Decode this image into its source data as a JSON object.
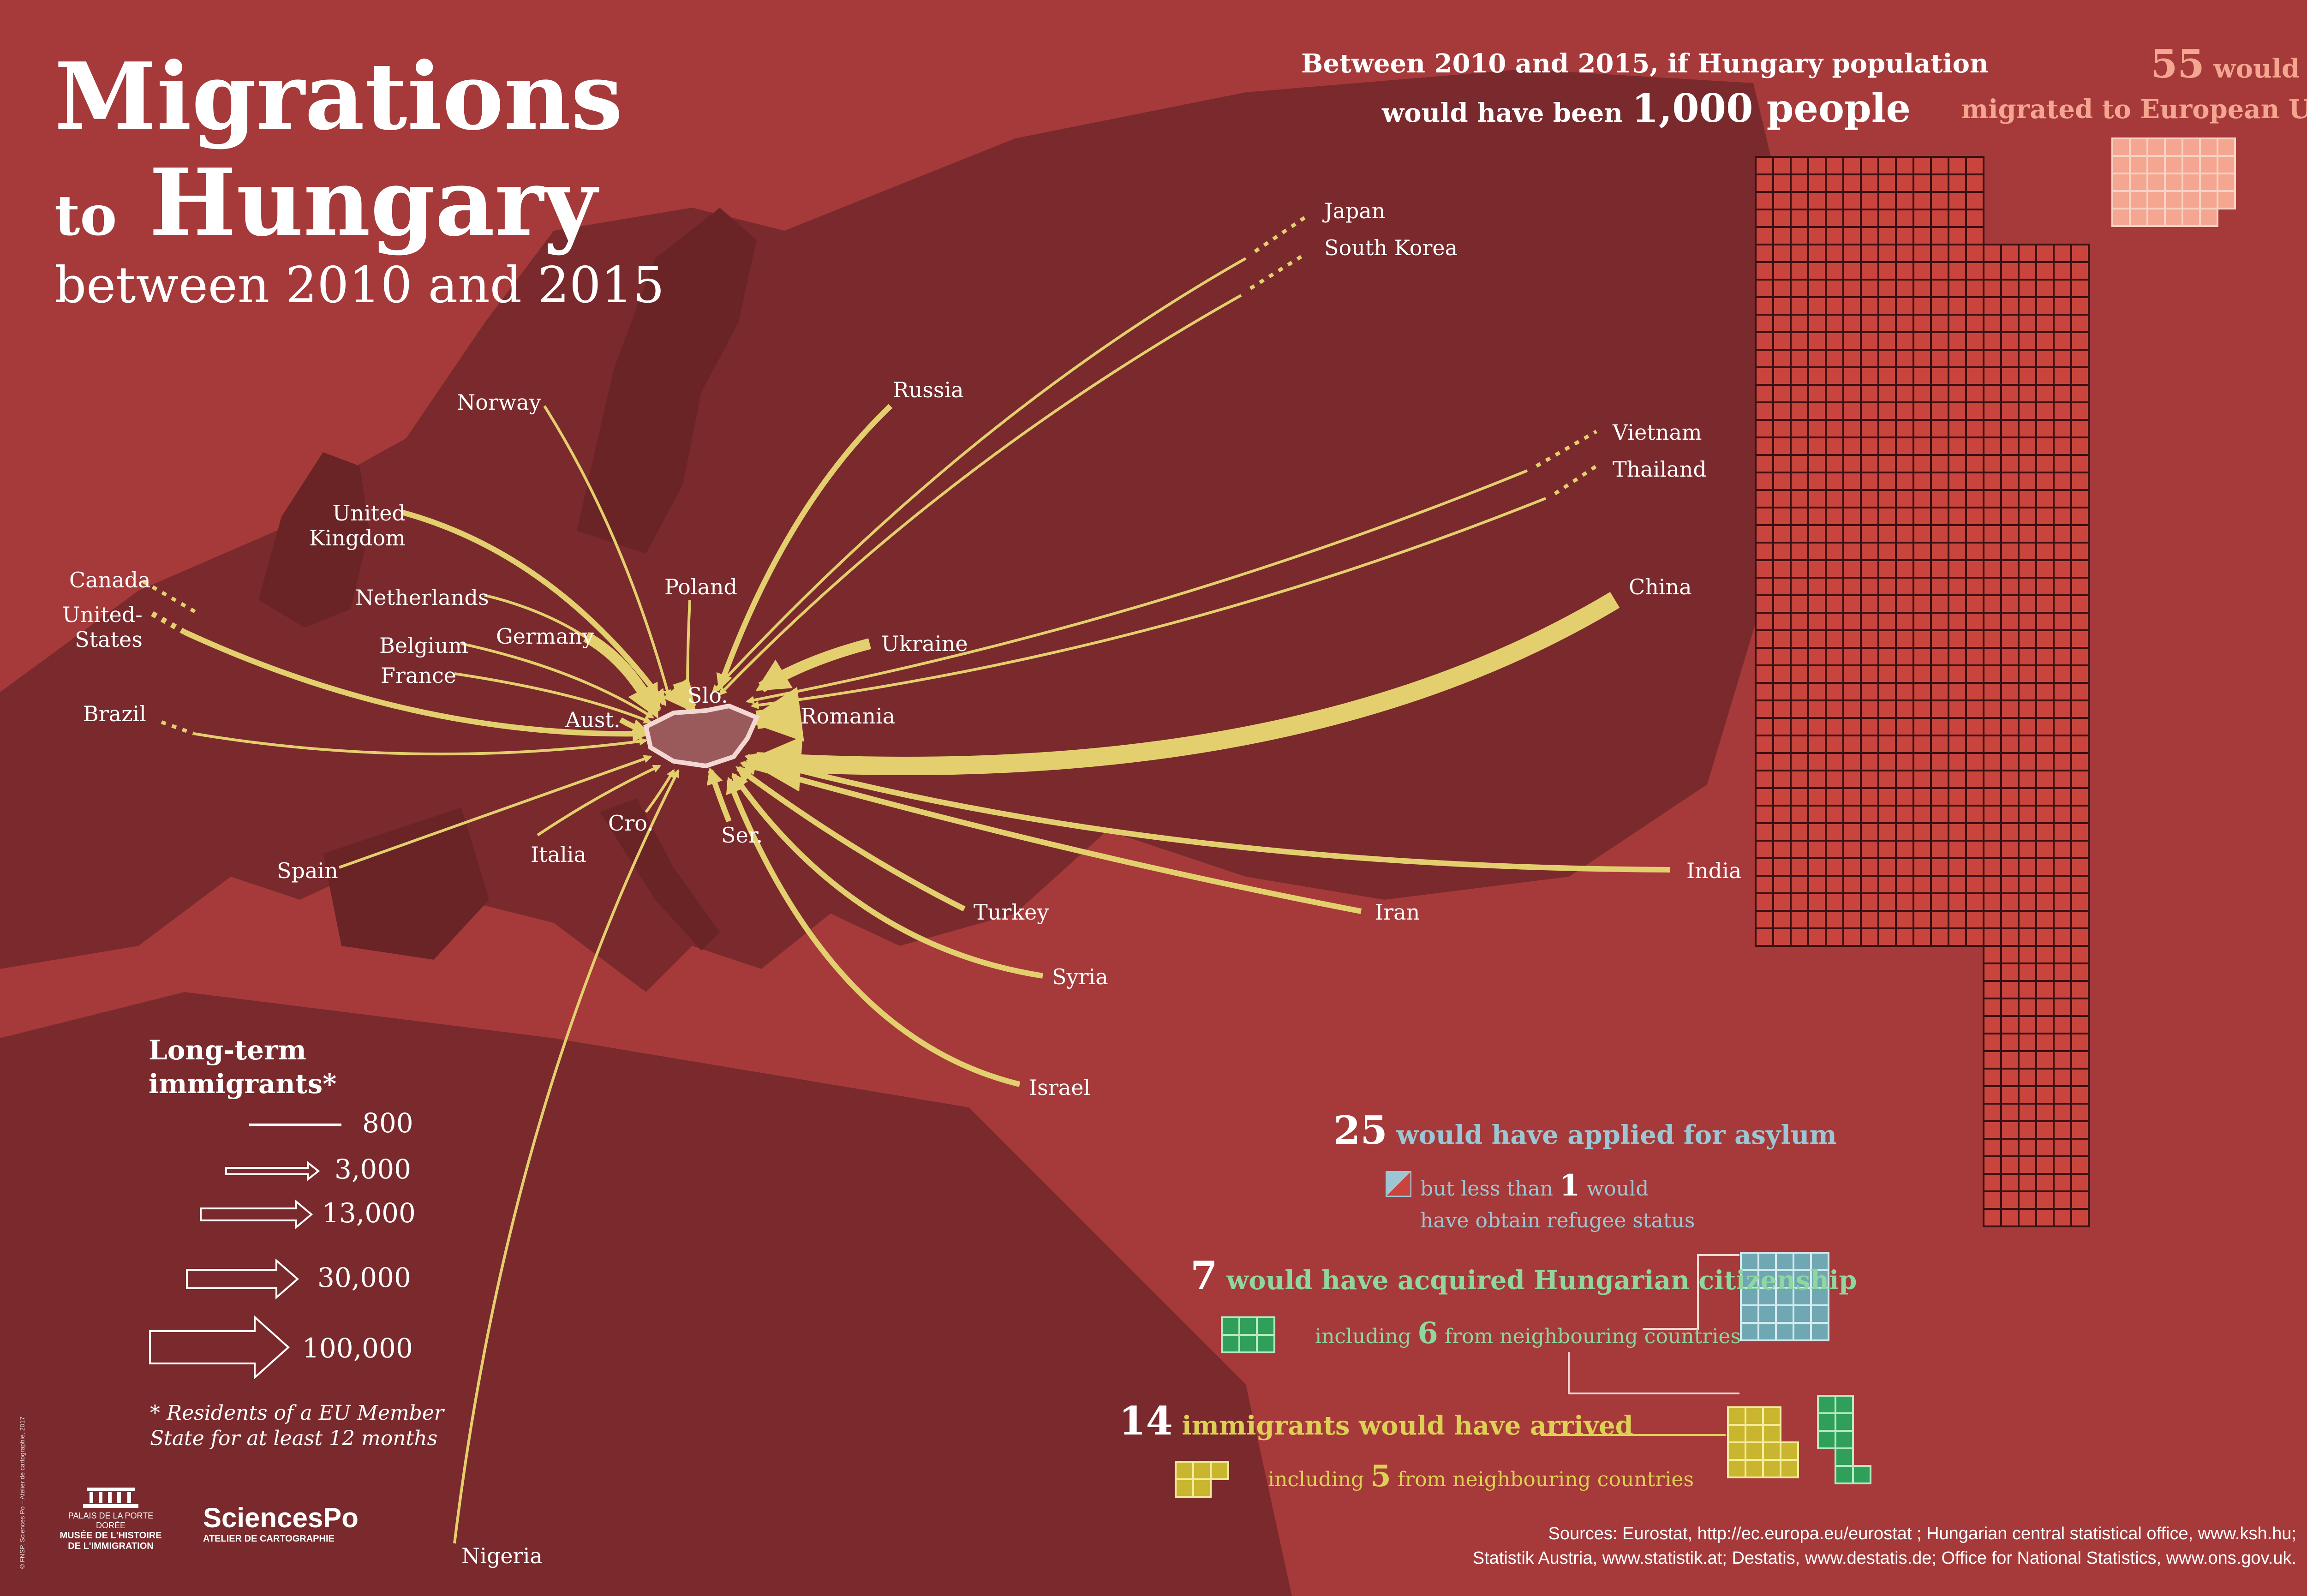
{
  "title": {
    "line1": "Migrations",
    "line2_to": "to",
    "line2_main": "Hungary",
    "subtitle": "between 2010 and 2015"
  },
  "flows": [
    {
      "label": "Japan",
      "value": 800
    },
    {
      "label": "South Korea",
      "value": 800
    },
    {
      "label": "Russia",
      "value": 3000
    },
    {
      "label": "Vietnam",
      "value": 800
    },
    {
      "label": "Thailand",
      "value": 800
    },
    {
      "label": "China",
      "value": 30000
    },
    {
      "label": "Ukraine",
      "value": 13000
    },
    {
      "label": "Romania",
      "value": 30000
    },
    {
      "label": "India",
      "value": 3000
    },
    {
      "label": "Iran",
      "value": 3000
    },
    {
      "label": "Turkey",
      "value": 3000
    },
    {
      "label": "Syria",
      "value": 3000
    },
    {
      "label": "Israel",
      "value": 3000
    },
    {
      "label": "Norway",
      "value": 800
    },
    {
      "label": "United Kingdom",
      "value": 3000
    },
    {
      "label": "Netherlands",
      "value": 800
    },
    {
      "label": "Germany",
      "value": 13000
    },
    {
      "label": "Belgium",
      "value": 800
    },
    {
      "label": "France",
      "value": 800
    },
    {
      "label": "Canada",
      "value": 800
    },
    {
      "label": "United-States",
      "value": 3000
    },
    {
      "label": "Brazil",
      "value": 800
    },
    {
      "label": "Spain",
      "value": 800
    },
    {
      "label": "Italia",
      "value": 800
    },
    {
      "label": "Nigeria",
      "value": 800
    },
    {
      "label": "Slo.",
      "value": 13000
    },
    {
      "label": "Aust.",
      "value": 3000
    },
    {
      "label": "Cro.",
      "value": 800
    },
    {
      "label": "Ser.",
      "value": 3000
    },
    {
      "label": "Poland",
      "value": 800
    }
  ],
  "labels": {
    "japan": "Japan",
    "south_korea": "South Korea",
    "russia": "Russia",
    "vietnam": "Vietnam",
    "thailand": "Thailand",
    "china": "China",
    "ukraine": "Ukraine",
    "romania": "Romania",
    "india": "India",
    "iran": "Iran",
    "turkey": "Turkey",
    "syria": "Syria",
    "israel": "Israel",
    "norway": "Norway",
    "uk_1": "United",
    "uk_2": "Kingdom",
    "netherlands": "Netherlands",
    "germany": "Germany",
    "belgium": "Belgium",
    "france": "France",
    "canada": "Canada",
    "us_1": "United-",
    "us_2": "States",
    "brazil": "Brazil",
    "spain": "Spain",
    "italia": "Italia",
    "nigeria": "Nigeria",
    "slo": "Slo.",
    "aust": "Aust.",
    "cro": "Cro.",
    "ser": "Ser.",
    "poland": "Poland"
  },
  "legend": {
    "title_1": "Long-term",
    "title_2": "immigrants*",
    "values": [
      "800",
      "3,000",
      "13,000",
      "30,000",
      "100,000"
    ],
    "footnote_1": "* Residents of a EU Member",
    "footnote_2": "State for at least 12 months"
  },
  "stats": {
    "header_1": "Between 2010 and 2015, if Hungary population",
    "header_2a": "would have been",
    "header_2b": "1,000 people",
    "eu_number": "55",
    "eu_text_1": "would have",
    "eu_text_2": "migrated to European Union",
    "asylum_number": "25",
    "asylum_text": "would have applied for asylum",
    "refugee_text_1": "but less than",
    "refugee_number": "1",
    "refugee_text_2": "would",
    "refugee_text_3": "have obtain refugee status",
    "citizenship_number": "7",
    "citizenship_text": "would have acquired Hungarian citizenship",
    "citizenship_incl_1": "including",
    "citizenship_incl_number": "6",
    "citizenship_incl_2": "from neighbouring countries",
    "immigrants_number": "14",
    "immigrants_text": "immigrants would have arrived",
    "immigrants_incl_1": "including",
    "immigrants_incl_number": "5",
    "immigrants_incl_2": "from neighbouring countries"
  },
  "grid": {
    "population": 1000,
    "emigrated_eu": 55,
    "asylum": 25,
    "refugee": 1,
    "citizenship": 7,
    "citizenship_neighbours": 6,
    "immigrants": 14,
    "immigrants_neighbours": 5
  },
  "colors": {
    "background": "#a63a3a",
    "land": "#7a2a2c",
    "flow": "#e3cf6e",
    "grid_main": "#c9443d",
    "grid_eu": "#f4a690",
    "grid_citizenship": "#6fa7b3",
    "grid_green": "#2f9f5a",
    "grid_yellow": "#c9b62e"
  },
  "sources": {
    "line1": "Sources: Eurostat, http://ec.europa.eu/eurostat ; Hungarian central statistical office, www.ksh.hu;",
    "line2": "Statistik Austria, www.statistik.at; Destatis, www.destatis.de; Office for National Statistics, www.ons.gov.uk."
  },
  "logos": {
    "museum_1": "PALAIS DE LA PORTE DORÉE",
    "museum_2": "MUSÉE DE L'HISTOIRE",
    "museum_3": "DE L'IMMIGRATION",
    "sciencespo": "SciencesPo",
    "atelier": "ATELIER DE CARTOGRAPHIE",
    "credit": "© FNSP. Sciences Po – Atelier de cartographie, 2017"
  }
}
